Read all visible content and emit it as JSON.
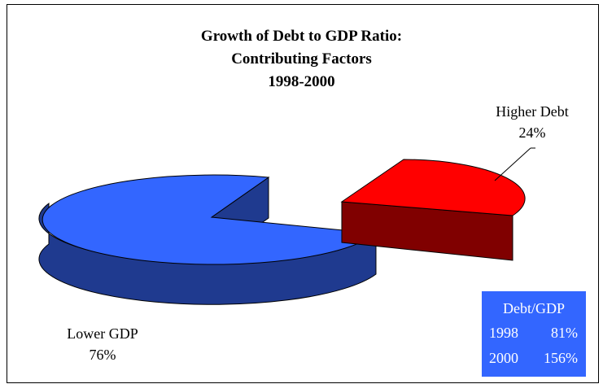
{
  "chart_data": {
    "type": "pie",
    "title_lines": [
      "Growth of Debt to GDP Ratio:",
      "Contributing Factors",
      "1998-2000"
    ],
    "slices": [
      {
        "name": "Higher Debt",
        "pct_label": "24%",
        "value": 24,
        "color": "#ff0000",
        "side_color": "#800000"
      },
      {
        "name": "Lower GDP",
        "pct_label": "76%",
        "value": 76,
        "color": "#3366ff",
        "side_color": "#1f3a8f"
      }
    ],
    "exploded_slice": "Higher Debt",
    "style": "3d-pie"
  },
  "table": {
    "header": "Debt/GDP",
    "rows": [
      {
        "year": "1998",
        "value": "81%"
      },
      {
        "year": "2000",
        "value": "156%"
      }
    ],
    "background": "#3366ff"
  }
}
